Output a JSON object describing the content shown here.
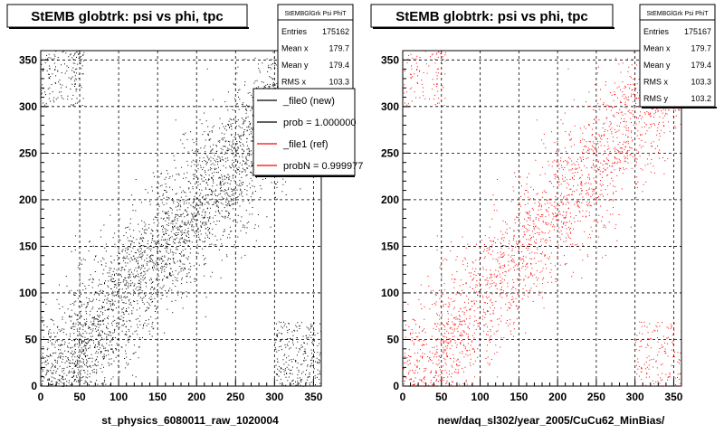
{
  "chart_data": [
    {
      "type": "scatter",
      "title": "StEMB globtrk: psi vs phi, tpc",
      "xlabel": "st_physics_6080011_raw_1020004",
      "ylabel": "",
      "xlim": [
        0,
        360
      ],
      "ylim": [
        0,
        360
      ],
      "xticks": [
        0,
        50,
        100,
        150,
        200,
        250,
        300,
        350
      ],
      "yticks": [
        0,
        50,
        100,
        150,
        200,
        250,
        300,
        350
      ],
      "grid": true,
      "point_color": "#000000",
      "distribution": "dense diagonal band psi≈phi with wrap-around corners",
      "stats": {
        "title": "StEMBGlGrk Psi PhiT",
        "rows": [
          {
            "label": "Entries",
            "value": "175162"
          },
          {
            "label": "Mean x",
            "value": "179.7"
          },
          {
            "label": "Mean y",
            "value": "179.4"
          },
          {
            "label": "RMS x",
            "value": "103.3"
          }
        ]
      },
      "legend": {
        "placement": "top-right",
        "entries": [
          {
            "label": "_file0 (new)",
            "color": "#000000"
          },
          {
            "label": "prob = 1.000000",
            "color": "#000000"
          },
          {
            "label": "_file1 (ref)",
            "color": "#ff0000"
          },
          {
            "label": "probN = 0.999977",
            "color": "#ff0000"
          }
        ]
      }
    },
    {
      "type": "scatter",
      "title": "StEMB globtrk: psi vs phi, tpc",
      "xlabel": "new/daq_sl302/year_2005/CuCu62_MinBias/",
      "ylabel": "",
      "xlim": [
        0,
        360
      ],
      "ylim": [
        0,
        360
      ],
      "xticks": [
        0,
        50,
        100,
        150,
        200,
        250,
        300,
        350
      ],
      "yticks": [
        0,
        50,
        100,
        150,
        200,
        250,
        300,
        350
      ],
      "grid": true,
      "point_color": "#ff0000",
      "distribution": "dense diagonal band psi≈phi with wrap-around corners",
      "stats": {
        "title": "StEMBGlGrk Psi PhiT",
        "rows": [
          {
            "label": "Entries",
            "value": "175167"
          },
          {
            "label": "Mean x",
            "value": "179.7"
          },
          {
            "label": "Mean y",
            "value": "179.4"
          },
          {
            "label": "RMS x",
            "value": "103.3"
          },
          {
            "label": "RMS y",
            "value": "103.2"
          }
        ]
      }
    }
  ]
}
